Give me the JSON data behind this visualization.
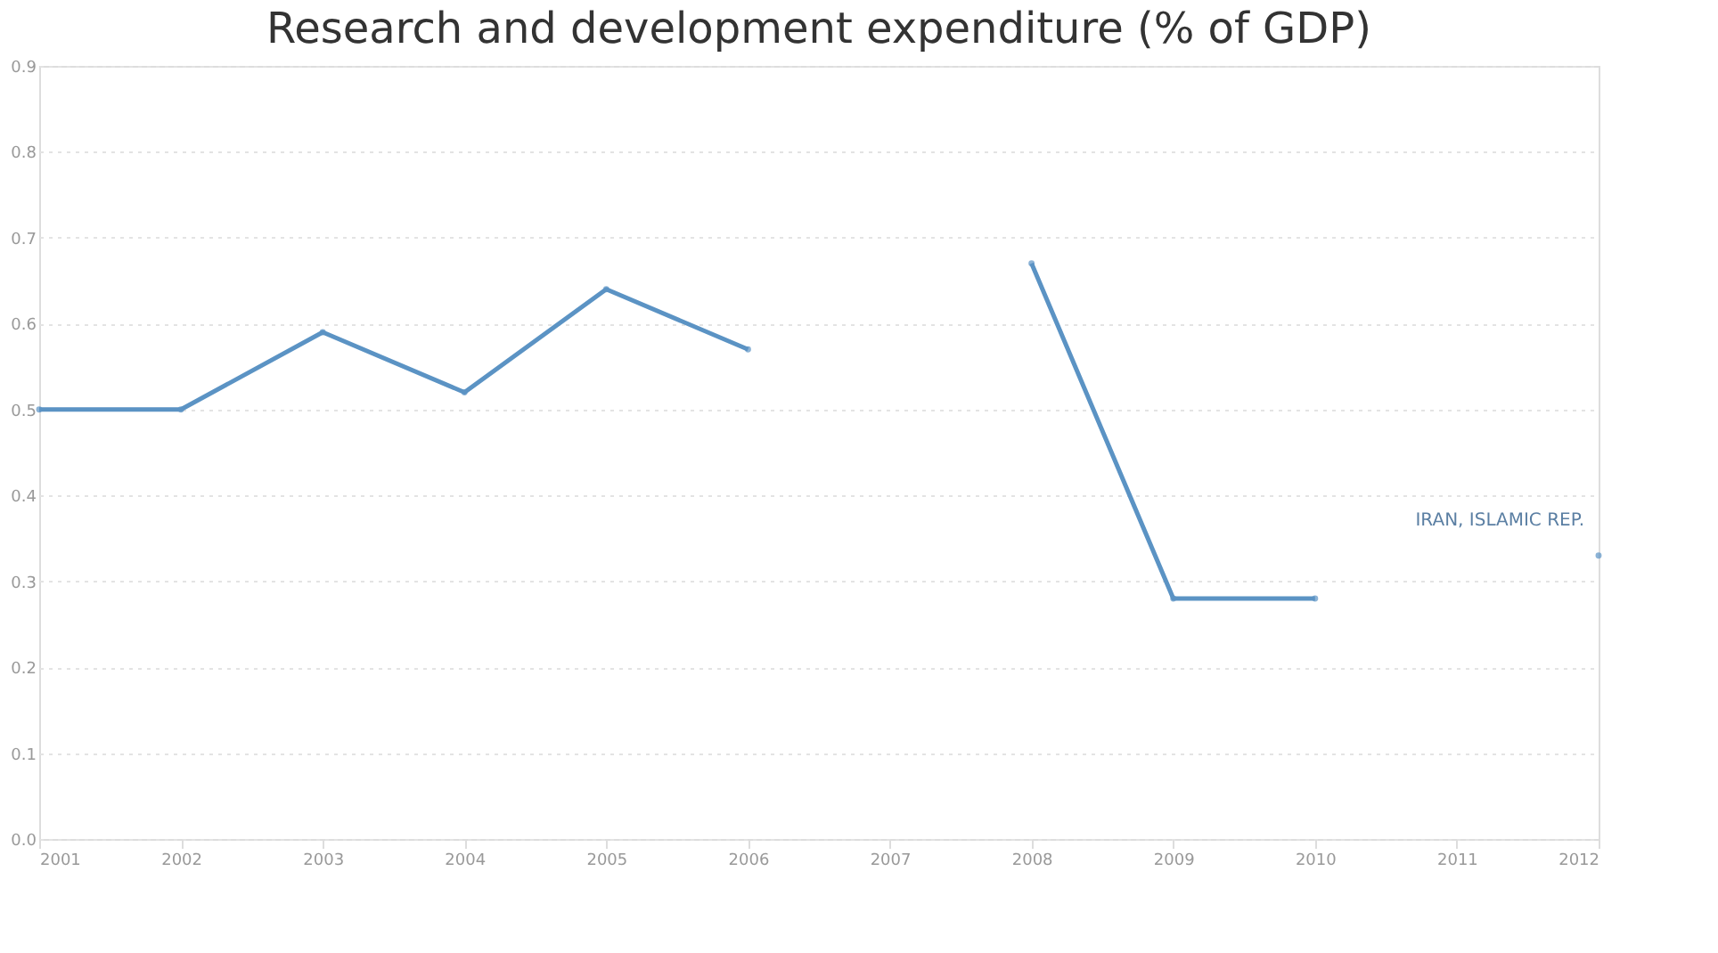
{
  "chart_data": {
    "type": "line",
    "title": "Research and development expenditure (% of GDP)",
    "x": [
      2001,
      2002,
      2003,
      2004,
      2005,
      2006,
      2007,
      2008,
      2009,
      2010,
      2011,
      2012
    ],
    "series": [
      {
        "name": "IRAN, ISLAMIC REP.",
        "color": "#5b93c4",
        "values": [
          0.5,
          0.5,
          0.59,
          0.52,
          0.64,
          0.57,
          null,
          0.67,
          0.28,
          0.28,
          null,
          0.33
        ]
      }
    ],
    "xlim": [
      2001,
      2012
    ],
    "xticks": [
      2001,
      2002,
      2003,
      2004,
      2005,
      2006,
      2007,
      2008,
      2009,
      2010,
      2011,
      2012
    ],
    "ylim": [
      0,
      0.9
    ],
    "yticks": [
      {
        "value": 0,
        "label": "0.0"
      },
      0.1,
      0.2,
      0.3,
      0.4,
      0.5,
      0.6,
      0.7,
      0.8,
      0.9
    ],
    "grid": "y",
    "marker": "circle",
    "line_style": "solid",
    "legend": false
  }
}
